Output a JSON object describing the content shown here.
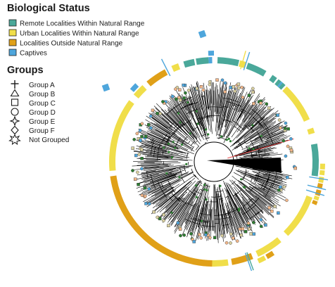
{
  "legend": {
    "status_title": "Biological Status",
    "status_items": [
      {
        "label": "Remote Localities Within Natural Range",
        "color": "#4aa89a"
      },
      {
        "label": "Urban Localities Within Natural Range",
        "color": "#f0de4a"
      },
      {
        "label": "Localities Outside Natural Range",
        "color": "#e0a018"
      },
      {
        "label": "Captives",
        "color": "#4ea6dc"
      }
    ],
    "groups_title": "Groups",
    "group_items": [
      {
        "label": "Group A",
        "icon": "cross-icon"
      },
      {
        "label": "Group B",
        "icon": "triangle-icon"
      },
      {
        "label": "Group C",
        "icon": "square-icon"
      },
      {
        "label": "Group D",
        "icon": "circle-icon"
      },
      {
        "label": "Group E",
        "icon": "four-point-star-icon"
      },
      {
        "label": "Group F",
        "icon": "diamond-icon"
      },
      {
        "label": "Not Grouped",
        "icon": "asterisk-star-icon"
      }
    ]
  },
  "tree": {
    "style": "circular",
    "branch_color": "#000000",
    "highlight_color": "#e8393a",
    "node_colors": [
      "#2e7d32",
      "#f2b78a",
      "#d9d0a0",
      "#4ea6dc"
    ]
  },
  "status_ring": {
    "arcs": [
      {
        "status": "remote",
        "from": 350,
        "to": 357
      },
      {
        "status": "captive",
        "from": 357,
        "to": 359
      },
      {
        "status": "remote",
        "from": 2,
        "to": 14
      },
      {
        "status": "urban",
        "from": 14.5,
        "to": 18
      },
      {
        "status": "remote",
        "from": 19,
        "to": 30
      },
      {
        "status": "remote",
        "from": 34,
        "to": 37
      },
      {
        "status": "remote",
        "from": 38,
        "to": 40
      },
      {
        "status": "captive",
        "from": 40,
        "to": 41
      },
      {
        "status": "remote",
        "from": 41,
        "to": 43
      },
      {
        "status": "urban",
        "from": 44,
        "to": 66
      },
      {
        "status": "urban",
        "from": 71,
        "to": 74
      },
      {
        "status": "remote",
        "from": 80,
        "to": 98
      },
      {
        "status": "urban",
        "from": 110,
        "to": 135
      },
      {
        "status": "urban",
        "from": 140,
        "to": 155
      },
      {
        "status": "outside",
        "from": 320,
        "to": 332
      },
      {
        "status": "urban",
        "from": 336,
        "to": 340
      },
      {
        "status": "remote",
        "from": 343,
        "to": 349
      },
      {
        "status": "urban",
        "from": 172,
        "to": 181
      },
      {
        "status": "urban",
        "from": 184,
        "to": 186
      },
      {
        "status": "urban",
        "from": 265,
        "to": 306
      },
      {
        "status": "urban",
        "from": 310,
        "to": 317
      },
      {
        "status": "outside",
        "from": 181,
        "to": 262
      },
      {
        "status": "outside",
        "from": 158,
        "to": 170
      }
    ],
    "outer_arcs": [
      {
        "status": "urban",
        "from": 91,
        "to": 94
      },
      {
        "status": "urban",
        "from": 94.5,
        "to": 97
      },
      {
        "status": "urban",
        "from": 98,
        "to": 101
      },
      {
        "status": "outside",
        "from": 101.5,
        "to": 104
      },
      {
        "status": "outside",
        "from": 105,
        "to": 108
      },
      {
        "status": "urban",
        "from": 108.5,
        "to": 110.5
      },
      {
        "status": "outside",
        "from": 111,
        "to": 113
      },
      {
        "status": "outside",
        "from": 147,
        "to": 151
      },
      {
        "status": "urban",
        "from": 152,
        "to": 156
      },
      {
        "status": "captive",
        "from": 311,
        "to": 315
      },
      {
        "status": "captive",
        "from": 357,
        "to": 360
      }
    ],
    "ticks": [
      {
        "status": "urban",
        "angle": 16
      },
      {
        "status": "captive",
        "angle": 18
      },
      {
        "status": "captive",
        "angle": 99
      },
      {
        "status": "captive",
        "angle": 104
      },
      {
        "status": "captive",
        "angle": 107
      },
      {
        "status": "remote",
        "angle": 160
      },
      {
        "status": "captive",
        "angle": 161
      },
      {
        "status": "captive",
        "angle": 333
      }
    ]
  }
}
